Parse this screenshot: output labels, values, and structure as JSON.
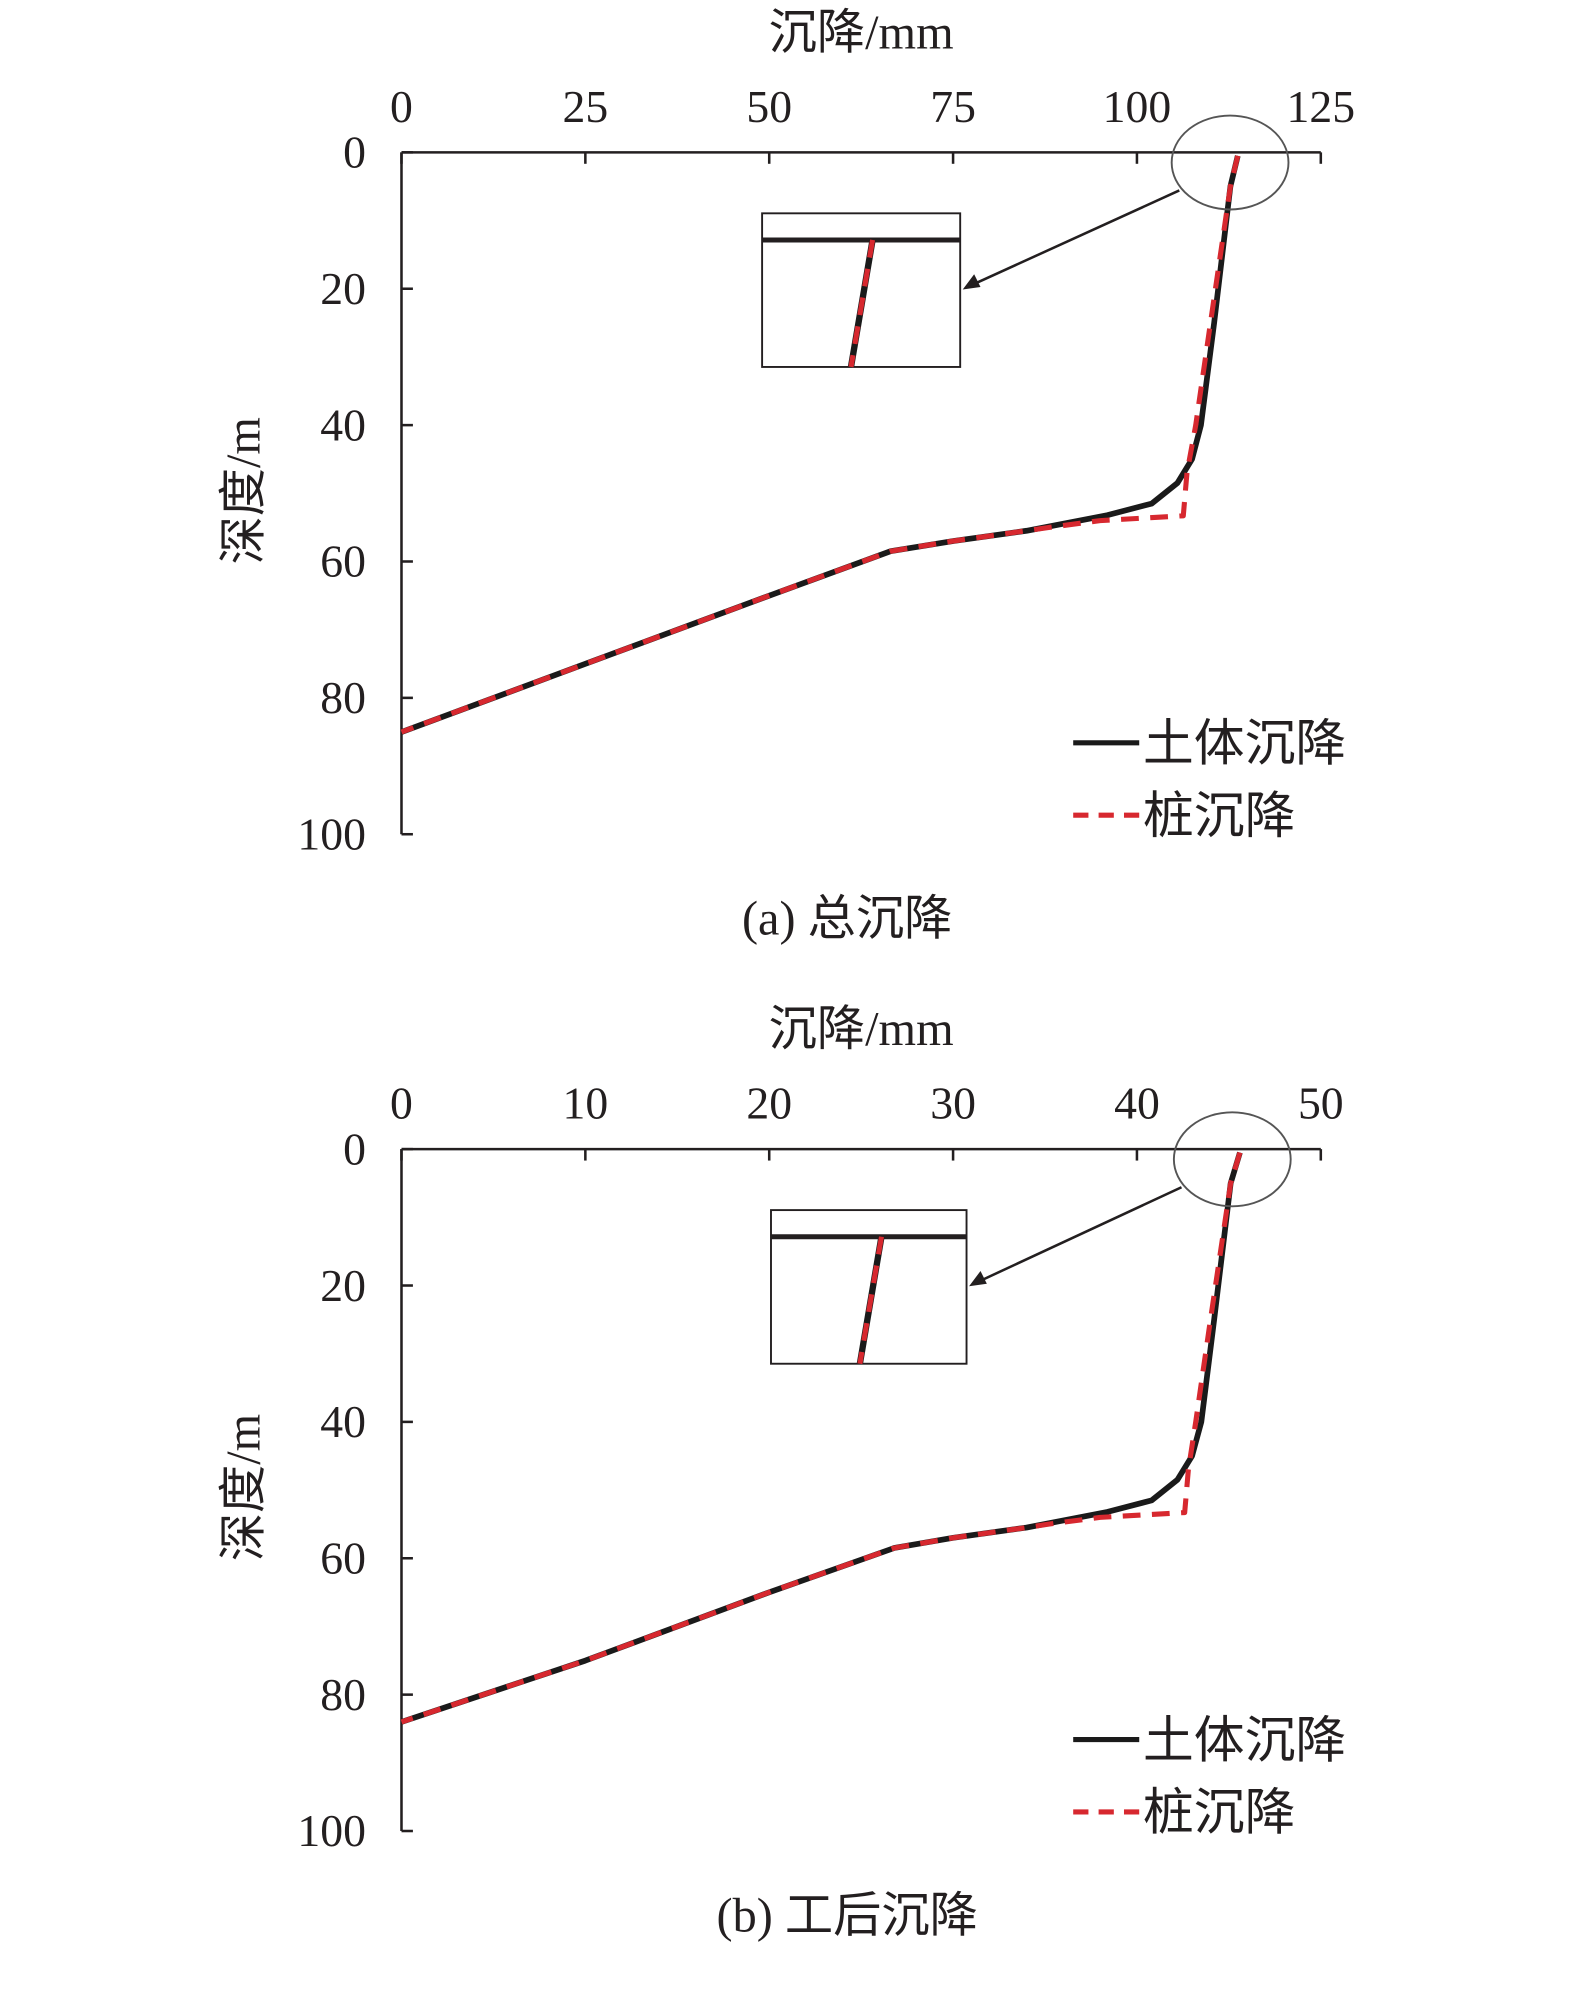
{
  "chart_data": [
    {
      "type": "line",
      "caption": "(a) 总沉降",
      "xlabel": "沉降/mm",
      "ylabel": "深度/m",
      "xlim": [
        0,
        125
      ],
      "ylim": [
        0,
        100
      ],
      "y_inverted": true,
      "x_axis_position": "top",
      "xticks": [
        "0",
        "25",
        "50",
        "75",
        "100",
        "125"
      ],
      "yticks": [
        "0",
        "20",
        "40",
        "60",
        "80",
        "100"
      ],
      "grid": false,
      "legend": "bottom-right",
      "series": [
        {
          "name": "土体沉降",
          "color": "#1a1a1a",
          "style": "solid",
          "points": [
            [
              113.7,
              0.5
            ],
            [
              112.7,
              5
            ],
            [
              110.5,
              25
            ],
            [
              108.7,
              40
            ],
            [
              107.5,
              45
            ],
            [
              105.5,
              48.5
            ],
            [
              102,
              51.5
            ],
            [
              96,
              53.2
            ],
            [
              85,
              55.5
            ],
            [
              75,
              57
            ],
            [
              66.5,
              58.5
            ],
            [
              50,
              65
            ],
            [
              25,
              75
            ],
            [
              0,
              85
            ]
          ]
        },
        {
          "name": "桩沉降",
          "color": "#d7282f",
          "style": "dashed",
          "points": [
            [
              113.7,
              0.5
            ],
            [
              112.7,
              5
            ],
            [
              110,
              25
            ],
            [
              108,
              40
            ],
            [
              106.8,
              47
            ],
            [
              106.3,
              53.3
            ],
            [
              95,
              54
            ],
            [
              88,
              55
            ],
            [
              85,
              55.5
            ],
            [
              75,
              57
            ],
            [
              66.5,
              58.5
            ],
            [
              50,
              65
            ],
            [
              25,
              75
            ],
            [
              0,
              85
            ]
          ]
        }
      ]
    },
    {
      "type": "line",
      "caption": "(b) 工后沉降",
      "xlabel": "沉降/mm",
      "ylabel": "深度/m",
      "xlim": [
        0,
        50
      ],
      "ylim": [
        0,
        100
      ],
      "y_inverted": true,
      "x_axis_position": "top",
      "xticks": [
        "0",
        "10",
        "20",
        "30",
        "40",
        "50"
      ],
      "yticks": [
        "0",
        "20",
        "40",
        "60",
        "80",
        "100"
      ],
      "grid": false,
      "legend": "bottom-right",
      "series": [
        {
          "name": "土体沉降",
          "color": "#1a1a1a",
          "style": "solid",
          "points": [
            [
              45.6,
              0.5
            ],
            [
              45.1,
              5
            ],
            [
              44.2,
              25
            ],
            [
              43.5,
              40
            ],
            [
              43,
              45
            ],
            [
              42.2,
              48.5
            ],
            [
              40.8,
              51.5
            ],
            [
              38.4,
              53.2
            ],
            [
              34,
              55.5
            ],
            [
              30,
              57
            ],
            [
              26.8,
              58.5
            ],
            [
              20,
              65
            ],
            [
              10,
              75
            ],
            [
              0,
              84
            ]
          ]
        },
        {
          "name": "桩沉降",
          "color": "#d7282f",
          "style": "dashed",
          "points": [
            [
              45.6,
              0.5
            ],
            [
              45.1,
              5
            ],
            [
              44,
              25
            ],
            [
              43.2,
              40
            ],
            [
              42.8,
              47
            ],
            [
              42.6,
              53.3
            ],
            [
              38,
              54
            ],
            [
              35.2,
              55
            ],
            [
              34,
              55.5
            ],
            [
              30,
              57
            ],
            [
              26.8,
              58.5
            ],
            [
              20,
              65
            ],
            [
              10,
              75
            ],
            [
              0,
              84
            ]
          ]
        }
      ]
    }
  ]
}
